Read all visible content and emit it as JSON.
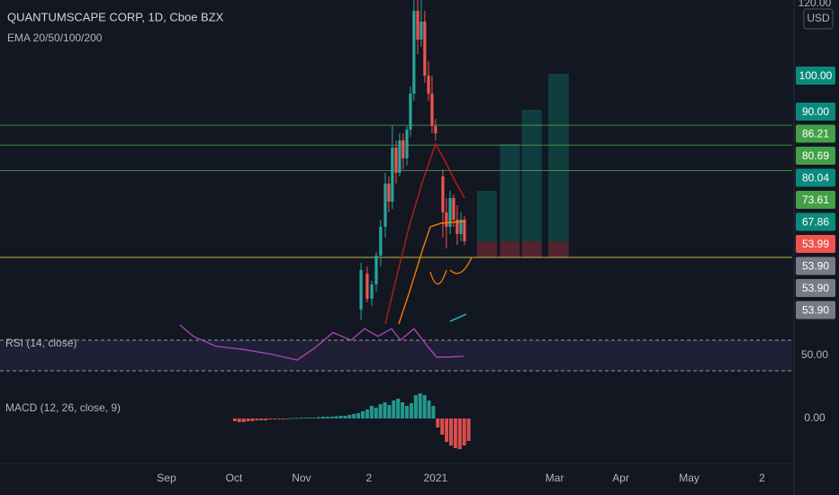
{
  "chart_data": [
    {
      "type": "candlestick",
      "title": "QUANTUMSCAPE CORP, 1D, Cboe BZX",
      "subtitle": "EMA 20/50/100/200",
      "currency": "USD",
      "up_color": "#26a69a",
      "down_color": "#ef5350",
      "xlim": [
        -75.5,
        283.7
      ],
      "xticks": [
        {
          "value": 0,
          "label": "Sep"
        },
        {
          "value": 30.6,
          "label": "Oct"
        },
        {
          "value": 61.2,
          "label": "Nov"
        },
        {
          "value": 91.8,
          "label": "2"
        },
        {
          "value": 122,
          "label": "2021"
        },
        {
          "value": 176,
          "label": "Mar"
        },
        {
          "value": 206,
          "label": "Apr"
        },
        {
          "value": 237,
          "label": "May"
        },
        {
          "value": 270,
          "label": "2"
        }
      ],
      "ylim": [
        28.5,
        121
      ],
      "yticks": [
        {
          "value": 120,
          "label": "120.00"
        }
      ],
      "x": [
        88.2,
        91.0,
        93.1,
        95.1,
        97.1,
        99.2,
        100.8,
        102.4,
        104.1,
        105.7,
        107.3,
        109.0,
        110.6,
        112.2,
        113.9,
        115.5,
        117.1,
        118.8,
        120.4,
        122.0,
        125.3,
        126.9,
        128.6,
        130.2,
        131.8,
        133.5,
        135.1
      ],
      "open": [
        35,
        45,
        38,
        42,
        50,
        58,
        70,
        65,
        80,
        73,
        82,
        77,
        85,
        95,
        118,
        110,
        115,
        100,
        95,
        86,
        72,
        62,
        58,
        66,
        60,
        56,
        60
      ],
      "high": [
        48,
        47,
        43,
        51,
        60,
        73,
        72,
        86,
        82,
        84,
        84,
        86,
        97,
        122,
        124,
        122,
        118,
        104,
        100,
        88,
        74,
        66,
        68,
        67,
        64,
        62,
        61
      ],
      "low": [
        32,
        37,
        36,
        40,
        47,
        55,
        62,
        63,
        70,
        72,
        74,
        75,
        83,
        93,
        106,
        108,
        98,
        93,
        84,
        82,
        55,
        52,
        56,
        58,
        53,
        54,
        53
      ],
      "close": [
        46,
        38,
        42,
        50,
        58,
        70,
        65,
        80,
        73,
        82,
        77,
        85,
        95,
        118,
        110,
        115,
        100,
        95,
        86,
        84,
        62,
        58,
        66,
        60,
        56,
        60,
        53.99
      ],
      "series": [
        {
          "color": "#b71c1c",
          "x": [
            99.2,
            104.1,
            110.2,
            116.3,
            122.0,
            126.5,
            130.6,
            135.1
          ],
          "values": [
            31,
            43.5,
            58.5,
            71,
            81,
            76,
            71,
            66
          ]
        },
        {
          "color": "#f57c00",
          "x": [
            105.3,
            110.2,
            116.3,
            119.6,
            124.5,
            135.1
          ],
          "values": [
            31,
            40,
            52,
            58,
            59,
            59.5
          ]
        }
      ],
      "levels": [
        {
          "value": 86.21,
          "color": "#4caf50"
        },
        {
          "value": 80.69,
          "color": "#4caf50"
        },
        {
          "value": 73.61,
          "color": "#4caf50"
        },
        {
          "value": 49.5,
          "color": "#ffee58"
        }
      ],
      "entry": 53.9,
      "stop": 49.5,
      "target_color": "#0f5e5a",
      "stop_color": "#5c2630",
      "targets": [
        {
          "x": [
            140.8,
            149.8
          ],
          "target": 68
        },
        {
          "x": [
            151.2,
            160.2
          ],
          "target": 81
        },
        {
          "x": [
            161.1,
            170.1
          ],
          "target": 90.5
        },
        {
          "x": [
            173.1,
            182.4
          ],
          "target": 100.5
        }
      ],
      "price_labels": [
        {
          "value": 100,
          "label": "100.00",
          "color": "#0b8a7c"
        },
        {
          "value": 90,
          "label": "90.00",
          "color": "#0b8a7c"
        },
        {
          "value": 86.21,
          "label": "86.21",
          "color": "#43a047"
        },
        {
          "value": 80.69,
          "label": "80.69",
          "color": "#43a047"
        },
        {
          "value": 80.04,
          "label": "80.04",
          "color": "#0b8a7c"
        },
        {
          "value": 73.61,
          "label": "73.61",
          "color": "#43a047"
        },
        {
          "value": 67.86,
          "label": "67.86",
          "color": "#0b8a7c"
        },
        {
          "value": 53.99,
          "label": "53.99",
          "color": "#ef5350"
        },
        {
          "value": 53.9,
          "label": "53.90",
          "color": "#787b86"
        },
        {
          "value": 53.9,
          "label": "53.90",
          "color": "#787b86"
        },
        {
          "value": 53.9,
          "label": "53.90",
          "color": "#787b86"
        }
      ]
    },
    {
      "type": "line",
      "title": "RSI (14, close)",
      "color": "#ab47bc",
      "band": [
        30,
        70
      ],
      "ylim": [
        20.6,
        102.9
      ],
      "yticks": [
        {
          "value": 50,
          "label": "50.00"
        }
      ],
      "x": [
        6.1,
        12.2,
        22.4,
        34.7,
        46.9,
        59.2,
        67.3,
        75.5,
        83.7,
        89.8,
        95.9,
        102.0,
        106.1,
        112.2,
        118.4,
        122.4,
        128.6,
        134.7
      ],
      "values": [
        90,
        75,
        62,
        58,
        52,
        44,
        60,
        80,
        70,
        85,
        75,
        85,
        70,
        85,
        62,
        48,
        48,
        49
      ]
    },
    {
      "type": "bar",
      "title": "MACD (12, 26, close, 9)",
      "positive_color": "#26a69a",
      "negative_color": "#ef5350",
      "ylim": [
        -45,
        45
      ],
      "yticks": [
        {
          "value": 0,
          "label": "0.00"
        }
      ],
      "x": [
        31,
        33,
        35,
        37,
        39,
        41,
        43,
        45,
        47,
        49,
        51,
        53,
        55,
        57,
        59,
        61,
        63,
        65,
        67,
        69,
        71,
        73,
        75,
        77,
        79,
        81,
        83,
        85,
        87,
        89,
        91,
        93,
        95,
        97,
        99,
        101,
        103,
        105,
        107,
        109,
        111,
        113,
        115,
        117,
        119,
        121,
        123,
        125,
        127,
        129,
        131,
        133,
        135,
        137
      ],
      "values": [
        -3,
        -4,
        -4,
        -3,
        -3,
        -2,
        -2,
        -2,
        -1,
        -1,
        -1,
        -1,
        -0.5,
        0.5,
        0.5,
        1,
        1,
        1,
        1,
        1.5,
        2,
        2,
        2,
        2.5,
        3,
        3,
        4,
        5,
        6,
        8,
        10,
        14,
        12,
        16,
        18,
        15,
        20,
        22,
        18,
        14,
        17,
        26,
        28,
        26,
        20,
        14,
        -10,
        -18,
        -26,
        -30,
        -33,
        -34,
        -30,
        -25
      ]
    }
  ]
}
